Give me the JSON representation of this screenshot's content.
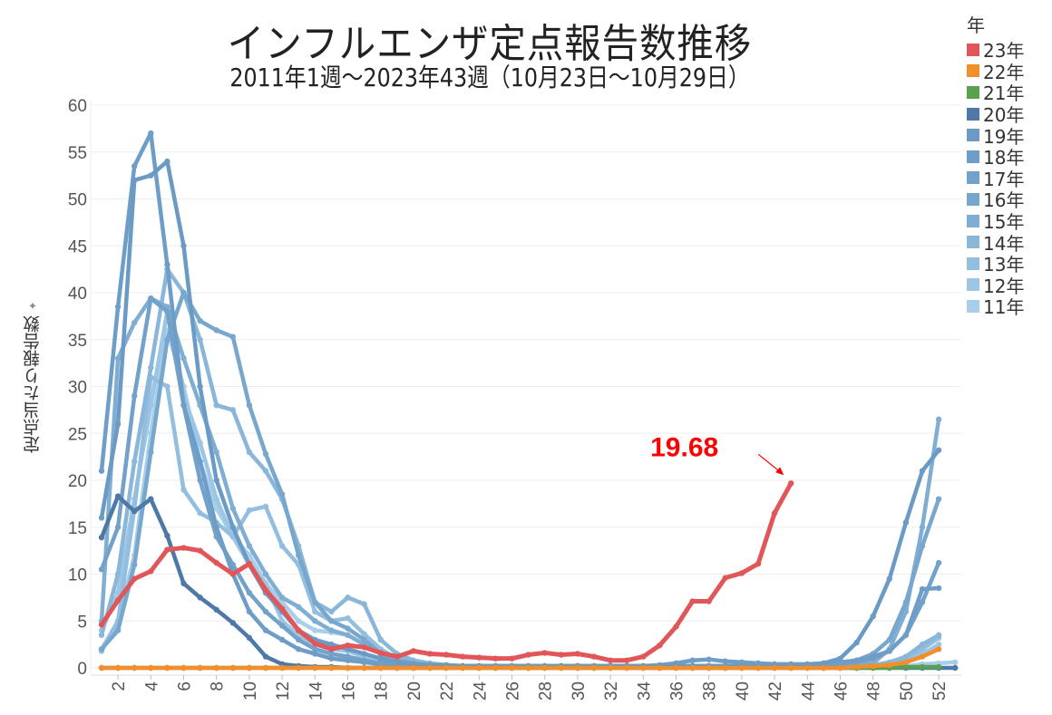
{
  "chart_data": {
    "type": "line",
    "title": "インフルエンザ定点報告数推移",
    "subtitle": "2011年1週～2023年43週（10月23日～10月29日）",
    "ylabel": "定点当たり報告数",
    "ylabel_icon": "sort-icon",
    "ylim": [
      0,
      60
    ],
    "yticks": [
      0,
      5,
      10,
      15,
      20,
      25,
      30,
      35,
      40,
      45,
      50,
      55,
      60
    ],
    "xticks": [
      2,
      4,
      6,
      8,
      10,
      12,
      14,
      16,
      18,
      20,
      22,
      24,
      26,
      28,
      30,
      32,
      34,
      36,
      38,
      40,
      42,
      44,
      46,
      48,
      50,
      52
    ],
    "xlim": [
      1,
      53
    ],
    "grid": true,
    "legend_title": "年",
    "legend_position": "right",
    "annotation": {
      "text": "19.68",
      "color": "#ff0000",
      "week": 43,
      "series": "23年"
    },
    "series": [
      {
        "name": "23年",
        "color": "#e15759",
        "values": [
          4.6,
          7.2,
          9.5,
          10.3,
          12.6,
          12.8,
          12.5,
          11.2,
          10.0,
          11.1,
          8.3,
          6.3,
          4.0,
          2.6,
          2.0,
          2.4,
          2.2,
          1.6,
          1.2,
          1.8,
          1.5,
          1.4,
          1.2,
          1.1,
          1.0,
          1.0,
          1.4,
          1.6,
          1.4,
          1.5,
          1.2,
          0.8,
          0.8,
          1.2,
          2.4,
          4.4,
          7.1,
          7.1,
          9.6,
          10.1,
          11.1,
          16.5,
          19.68
        ]
      },
      {
        "name": "22年",
        "color": "#f28e2b",
        "values": [
          0,
          0,
          0,
          0,
          0,
          0,
          0,
          0,
          0,
          0,
          0,
          0,
          0,
          0,
          0,
          0,
          0,
          0,
          0,
          0,
          0,
          0,
          0,
          0,
          0,
          0,
          0,
          0,
          0,
          0,
          0,
          0,
          0,
          0,
          0,
          0,
          0,
          0,
          0,
          0,
          0,
          0,
          0,
          0,
          0,
          0,
          0.1,
          0.2,
          0.3,
          0.6,
          1.2,
          2.0
        ]
      },
      {
        "name": "21年",
        "color": "#59a14f",
        "values": [
          0,
          0,
          0,
          0,
          0,
          0,
          0,
          0,
          0,
          0,
          0,
          0,
          0,
          0,
          0,
          0,
          0,
          0,
          0,
          0,
          0,
          0,
          0,
          0,
          0,
          0,
          0,
          0,
          0,
          0,
          0,
          0,
          0,
          0,
          0,
          0,
          0,
          0,
          0,
          0,
          0,
          0,
          0,
          0,
          0,
          0,
          0,
          0,
          0,
          0.1,
          0.1,
          0.1
        ]
      },
      {
        "name": "20年",
        "color": "#4e79a7",
        "values": [
          13.9,
          18.3,
          16.7,
          18,
          14.1,
          9,
          7.5,
          6.2,
          4.8,
          3.2,
          1.2,
          0.4,
          0.2,
          0.1,
          0.1,
          0,
          0,
          0,
          0,
          0,
          0,
          0,
          0,
          0,
          0,
          0,
          0,
          0,
          0,
          0,
          0,
          0,
          0,
          0,
          0,
          0,
          0,
          0,
          0,
          0,
          0,
          0,
          0,
          0,
          0,
          0,
          0,
          0,
          0,
          0,
          0,
          0,
          0
        ]
      },
      {
        "name": "19年",
        "color": "#6b9bc5",
        "values": [
          16,
          26,
          52,
          52.5,
          54,
          45,
          30,
          20,
          15,
          11,
          8,
          6,
          4,
          3,
          2.5,
          2,
          1.5,
          1,
          0.6,
          0.4,
          0.3,
          0.3,
          0.2,
          0.2,
          0.2,
          0.2,
          0.2,
          0.2,
          0.2,
          0.2,
          0.2,
          0.2,
          0.2,
          0.2,
          0.2,
          0.2,
          0.2,
          0.2,
          0.2,
          0.2,
          0.2,
          0.2,
          0.2,
          0.3,
          0.5,
          1.0,
          2.7,
          5.5,
          9.5,
          15.5,
          21,
          23.2
        ]
      },
      {
        "name": "18年",
        "color": "#6e9ec7",
        "values": [
          21,
          38.5,
          53.5,
          57,
          43,
          28,
          22,
          15,
          10,
          6,
          4,
          3,
          2,
          1.5,
          1,
          0.8,
          0.6,
          0.4,
          0.3,
          0.3,
          0.2,
          0.2,
          0.2,
          0.2,
          0.2,
          0.2,
          0.2,
          0.2,
          0.2,
          0.2,
          0.2,
          0.2,
          0.2,
          0.2,
          0.3,
          0.5,
          0.8,
          0.9,
          0.7,
          0.6,
          0.5,
          0.4,
          0.4,
          0.4,
          0.5,
          0.6,
          0.8,
          1.2,
          1.8,
          3.5,
          8.4,
          8.5
        ]
      },
      {
        "name": "17年",
        "color": "#72a2ca",
        "values": [
          10.5,
          15,
          29,
          39.4,
          38,
          28,
          20,
          14,
          11,
          8,
          6,
          4.5,
          3,
          2,
          1.5,
          1.2,
          0.8,
          0.5,
          0.4,
          0.3,
          0.2,
          0.2,
          0.2,
          0.2,
          0.2,
          0.2,
          0.2,
          0.2,
          0.2,
          0.2,
          0.2,
          0.2,
          0.2,
          0.2,
          0.2,
          0.2,
          0.2,
          0.2,
          0.2,
          0.2,
          0.2,
          0.2,
          0.2,
          0.2,
          0.3,
          0.4,
          0.6,
          1,
          1.8,
          3.5,
          7,
          11.2
        ]
      },
      {
        "name": "16年",
        "color": "#78a7cd",
        "values": [
          2,
          4,
          11,
          23,
          35,
          40,
          37,
          36,
          35.3,
          28,
          22.8,
          18.5,
          12,
          7,
          5,
          4.2,
          3,
          1.5,
          0.8,
          0.5,
          0.3,
          0.2,
          0.2,
          0.2,
          0.2,
          0.2,
          0.2,
          0.2,
          0.2,
          0.2,
          0.2,
          0.2,
          0.2,
          0.2,
          0.2,
          0.2,
          0.2,
          0.2,
          0.2,
          0.2,
          0.2,
          0.2,
          0.2,
          0.2,
          0.3,
          0.5,
          0.8,
          1.5,
          3,
          7,
          13,
          18
        ]
      },
      {
        "name": "15年",
        "color": "#80aed3",
        "values": [
          5,
          33,
          36.8,
          39.4,
          38.5,
          33,
          28,
          23,
          17,
          13,
          10,
          7.5,
          6.5,
          5,
          4,
          3.5,
          2.5,
          1.5,
          0.8,
          0.5,
          0.3,
          0.2,
          0.2,
          0.2,
          0.2,
          0.2,
          0.2,
          0.2,
          0.2,
          0.2,
          0.2,
          0.2,
          0.2,
          0.2,
          0.2,
          0.2,
          0.2,
          0.2,
          0.2,
          0.2,
          0.2,
          0.2,
          0.2,
          0.2,
          0.2,
          0.3,
          0.4,
          0.5,
          2,
          6,
          15,
          26.5
        ]
      },
      {
        "name": "14年",
        "color": "#8ab6da",
        "values": [
          3.5,
          10,
          22,
          32,
          42.5,
          40,
          35,
          28,
          27.5,
          23,
          21,
          18,
          13,
          7,
          6,
          7.5,
          6.8,
          3,
          1.5,
          0.8,
          0.5,
          0.3,
          0.2,
          0.2,
          0.2,
          0.2,
          0.2,
          0.2,
          0.2,
          0.2,
          0.2,
          0.2,
          0.2,
          0.2,
          0.2,
          0.2,
          0.2,
          0.2,
          0.2,
          0.2,
          0.2,
          0.2,
          0.2,
          0.2,
          0.2,
          0.2,
          0.3,
          0.3,
          0.6,
          1.2,
          2.5,
          3.5
        ]
      },
      {
        "name": "13年",
        "color": "#94bedf",
        "values": [
          1.8,
          5,
          17,
          31,
          30,
          19,
          16.5,
          15.5,
          14,
          16.8,
          17.2,
          13,
          11,
          6,
          5,
          5.3,
          3.6,
          2,
          1,
          0.6,
          0.4,
          0.3,
          0.2,
          0.2,
          0.2,
          0.2,
          0.2,
          0.2,
          0.2,
          0.2,
          0.2,
          0.2,
          0.2,
          0.2,
          0.2,
          0.2,
          0.2,
          0.2,
          0.2,
          0.2,
          0.2,
          0.2,
          0.2,
          0.2,
          0.2,
          0.2,
          0.2,
          0.2,
          0.4,
          1,
          2,
          3.2
        ]
      },
      {
        "name": "12年",
        "color": "#9dc6e4",
        "values": [
          4,
          8,
          18,
          28,
          38,
          29,
          24,
          18,
          14,
          11,
          9,
          5,
          3.5,
          2.5,
          2,
          1.8,
          1.2,
          0.8,
          0.5,
          0.3,
          0.2,
          0.2,
          0.2,
          0.2,
          0.2,
          0.2,
          0.2,
          0.2,
          0.2,
          0.2,
          0.2,
          0.2,
          0.2,
          0.2,
          0.2,
          0.2,
          0.2,
          0.2,
          0.2,
          0.2,
          0.2,
          0.2,
          0.2,
          0.2,
          0.2,
          0.2,
          0.2,
          0.2,
          0.2,
          0.8,
          1.5,
          2.5
        ]
      },
      {
        "name": "11年",
        "color": "#a8cfe9",
        "values": [
          2,
          5,
          12,
          25,
          36,
          30,
          22,
          17,
          14,
          12,
          9,
          7,
          5,
          4,
          3.8,
          3.5,
          2.5,
          1.5,
          0.8,
          0.5,
          0.3,
          0.2,
          0.2,
          0.2,
          0.2,
          0.2,
          0.2,
          0.2,
          0.2,
          0.2,
          0.2,
          0.2,
          0.2,
          0.2,
          0.2,
          0.2,
          0.2,
          0.2,
          0.2,
          0.2,
          0.2,
          0.2,
          0.2,
          0.2,
          0.2,
          0.2,
          0.2,
          0.2,
          0.2,
          0.2,
          0.4,
          0.5,
          0.6
        ]
      }
    ]
  }
}
